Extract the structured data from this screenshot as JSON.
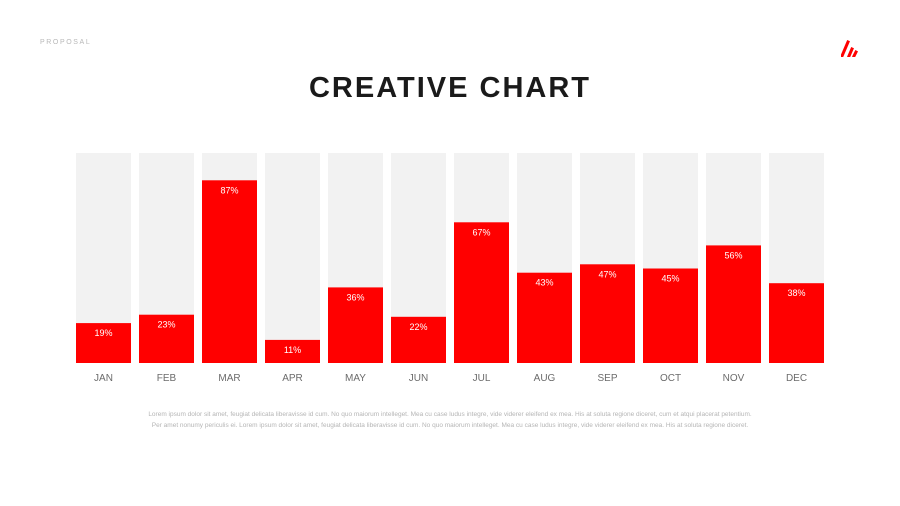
{
  "header": {
    "label": "PROPOSAL"
  },
  "logo": {
    "icon": "brand-slash-logo-icon",
    "color": "#ff0000"
  },
  "title": "CREATIVE CHART",
  "description": "Lorem ipsum dolor sit amet, feugiat delicata liberavisse id cum. No quo maiorum intelleget. Mea cu case ludus integre, vide viderer eleifend ex mea. His at soluta regione diceret, cum et atqui placerat petentium. Per amet nonumy periculis ei. Lorem ipsum dolor sit amet, feugiat delicata liberavisse id cum. No quo maiorum intelleget. Mea cu case ludus integre, vide viderer eleifend ex mea. His at soluta regione diceret.",
  "colors": {
    "bar": "#ff0000",
    "track": "#f2f2f2",
    "bar_label": "#ffffff",
    "axis_label": "#6b6b6b"
  },
  "chart_data": {
    "type": "bar",
    "categories": [
      "JAN",
      "FEB",
      "MAR",
      "APR",
      "MAY",
      "JUN",
      "JUL",
      "AUG",
      "SEP",
      "OCT",
      "NOV",
      "DEC"
    ],
    "values": [
      19,
      23,
      87,
      11,
      36,
      22,
      67,
      43,
      47,
      45,
      56,
      38
    ],
    "data_labels": [
      "19%",
      "23%",
      "87%",
      "11%",
      "36%",
      "22%",
      "67%",
      "43%",
      "47%",
      "45%",
      "56%",
      "38%"
    ],
    "ylim": [
      0,
      100
    ],
    "unit": "%",
    "grid": false,
    "legend": "none"
  }
}
